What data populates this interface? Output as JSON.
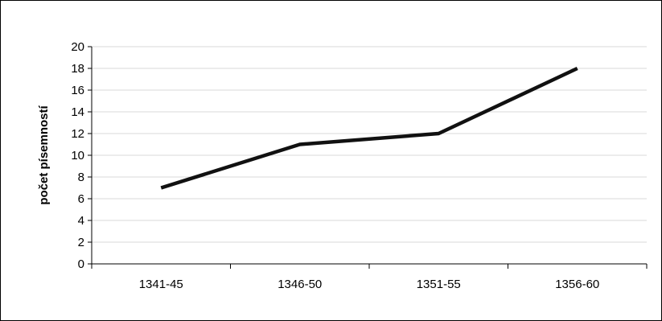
{
  "chart_data": {
    "type": "line",
    "categories": [
      "1341-45",
      "1346-50",
      "1351-55",
      "1356-60"
    ],
    "series": [
      {
        "values": [
          7,
          11,
          12,
          18
        ]
      }
    ],
    "title": "",
    "xlabel": "",
    "ylabel": "počet písemností",
    "ylim": [
      0,
      20
    ],
    "yticks": [
      0,
      2,
      4,
      6,
      8,
      10,
      12,
      14,
      16,
      18,
      20
    ],
    "grid": true,
    "legend": "none",
    "colors": {
      "line": "#111111",
      "grid": "#d9d9d9",
      "axis": "#000000"
    }
  }
}
